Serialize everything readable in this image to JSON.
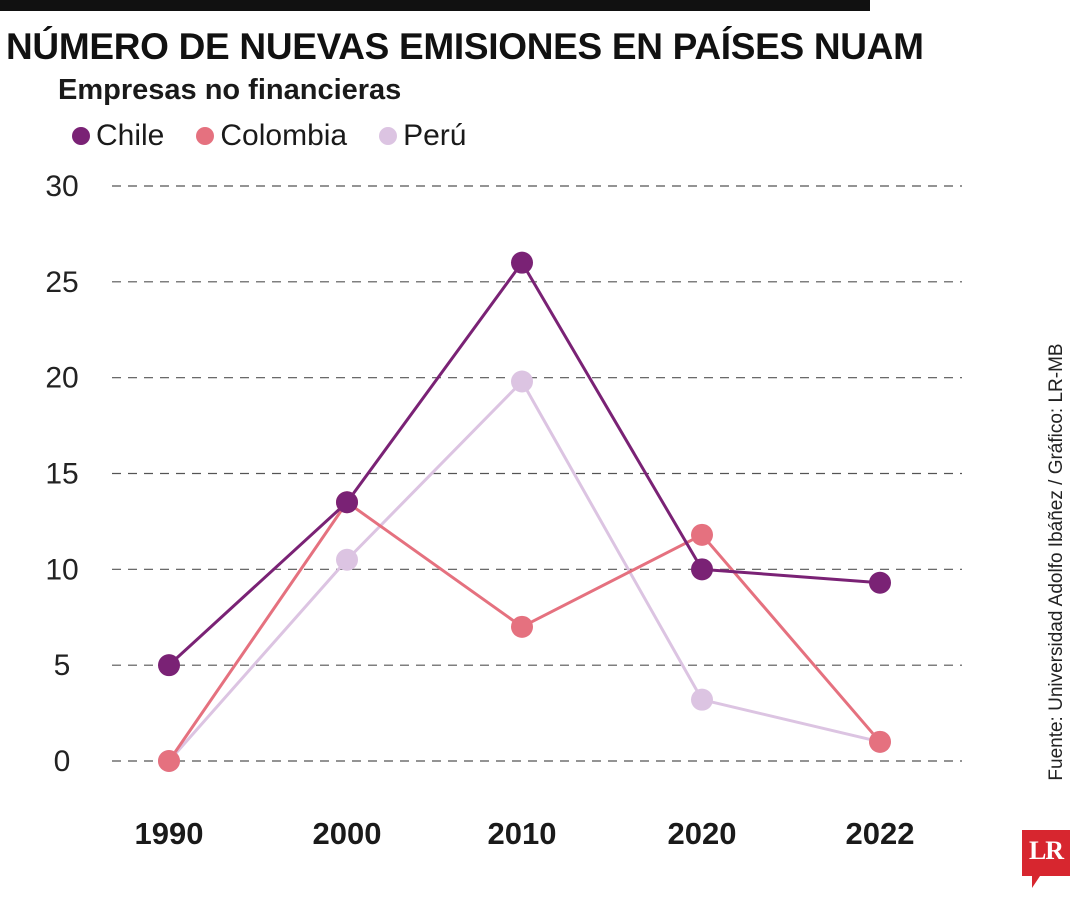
{
  "header": {
    "title": "NÚMERO DE NUEVAS EMISIONES EN PAÍSES NUAM",
    "subtitle": "Empresas no financieras"
  },
  "legend": {
    "items": [
      {
        "label": "Chile",
        "color": "#7a2275"
      },
      {
        "label": "Colombia",
        "color": "#e5717f"
      },
      {
        "label": "Perú",
        "color": "#dcc4e2"
      }
    ]
  },
  "source": "Fuente: Universidad Adolfo Ibáñez / Gráfico: LR-MB",
  "logo": {
    "text": "LR",
    "color": "#d7262f"
  },
  "chart_data": {
    "type": "line",
    "title": "NÚMERO DE NUEVAS EMISIONES EN PAÍSES NUAM",
    "subtitle": "Empresas no financieras",
    "xlabel": "",
    "ylabel": "",
    "categories": [
      "1990",
      "2000",
      "2010",
      "2020",
      "2022"
    ],
    "ylim": [
      0,
      30
    ],
    "yticks": [
      "0",
      "5",
      "10",
      "15",
      "20",
      "25",
      "30"
    ],
    "grid": "horizontal-dashed",
    "legend_position": "top-left",
    "series": [
      {
        "name": "Chile",
        "color": "#7a2275",
        "values": [
          5,
          13.5,
          26,
          10,
          9.3
        ]
      },
      {
        "name": "Colombia",
        "color": "#e5717f",
        "values": [
          0,
          13.5,
          7,
          11.8,
          1
        ]
      },
      {
        "name": "Perú",
        "color": "#dcc4e2",
        "values": [
          0,
          10.5,
          19.8,
          3.2,
          1
        ]
      }
    ]
  }
}
